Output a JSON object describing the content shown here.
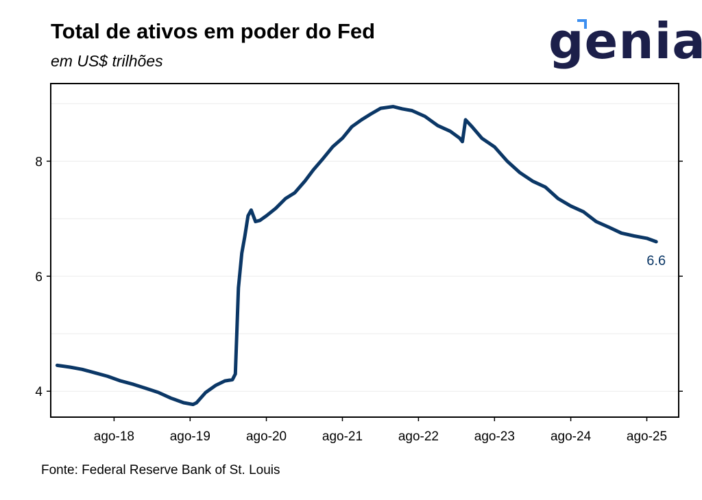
{
  "header": {
    "title": "Total de ativos em poder do Fed",
    "subtitle": "em US$ trilhões"
  },
  "logo": {
    "text": "genial"
  },
  "footer": {
    "source": "Fonte: Federal Reserve Bank of St. Louis"
  },
  "colors": {
    "series": "#0b3766",
    "logo": "#1c1f4a",
    "logo_accent": "#3b8ef0"
  },
  "chart_data": {
    "type": "line",
    "title": "Total de ativos em poder do Fed",
    "subtitle": "em US$ trilhões",
    "xlabel": "",
    "ylabel": "",
    "ylim": [
      3.55,
      9.35
    ],
    "xlim": [
      "2017-10-01",
      "2026-01-01"
    ],
    "yticks": [
      4,
      6,
      8
    ],
    "xticks": [
      "2018-08-01",
      "2019-08-01",
      "2020-08-01",
      "2021-08-01",
      "2022-08-01",
      "2023-08-01",
      "2024-08-01",
      "2025-08-01"
    ],
    "xtick_labels": [
      "ago-18",
      "ago-19",
      "ago-20",
      "ago-21",
      "ago-22",
      "ago-23",
      "ago-24",
      "ago-25"
    ],
    "grid": true,
    "series": [
      {
        "x": [
          "2017-11-01",
          "2018-01-01",
          "2018-03-01",
          "2018-05-01",
          "2018-07-01",
          "2018-09-01",
          "2018-11-01",
          "2019-01-01",
          "2019-03-01",
          "2019-05-01",
          "2019-07-01",
          "2019-08-15",
          "2019-09-01",
          "2019-10-15",
          "2019-12-01",
          "2020-01-15",
          "2020-02-20",
          "2020-03-05",
          "2020-03-20",
          "2020-04-05",
          "2020-04-20",
          "2020-05-05",
          "2020-05-20",
          "2020-06-10",
          "2020-07-01",
          "2020-08-01",
          "2020-09-15",
          "2020-11-01",
          "2020-12-15",
          "2021-02-01",
          "2021-03-15",
          "2021-05-01",
          "2021-06-15",
          "2021-08-01",
          "2021-09-15",
          "2021-11-01",
          "2021-12-15",
          "2022-02-01",
          "2022-04-01",
          "2022-05-15",
          "2022-07-01",
          "2022-09-01",
          "2022-11-01",
          "2023-01-01",
          "2023-02-15",
          "2023-02-28",
          "2023-03-15",
          "2023-04-15",
          "2023-06-01",
          "2023-08-01",
          "2023-10-01",
          "2023-12-01",
          "2024-02-01",
          "2024-04-01",
          "2024-06-01",
          "2024-08-01",
          "2024-10-01",
          "2024-12-01",
          "2025-02-01",
          "2025-04-01",
          "2025-06-01",
          "2025-08-01",
          "2025-09-15"
        ],
        "values": [
          4.45,
          4.42,
          4.38,
          4.32,
          4.26,
          4.18,
          4.12,
          4.05,
          3.98,
          3.88,
          3.8,
          3.77,
          3.8,
          3.98,
          4.1,
          4.18,
          4.2,
          4.3,
          5.8,
          6.4,
          6.7,
          7.05,
          7.15,
          6.95,
          6.97,
          7.05,
          7.18,
          7.35,
          7.45,
          7.65,
          7.85,
          8.05,
          8.25,
          8.4,
          8.6,
          8.72,
          8.82,
          8.92,
          8.95,
          8.91,
          8.88,
          8.78,
          8.62,
          8.52,
          8.4,
          8.34,
          8.72,
          8.6,
          8.4,
          8.25,
          8.0,
          7.8,
          7.65,
          7.55,
          7.35,
          7.22,
          7.12,
          6.95,
          6.85,
          6.75,
          6.7,
          6.66,
          6.6
        ]
      }
    ],
    "annotations": [
      {
        "text": "6.6",
        "x": "2025-09-15",
        "y": 6.6
      }
    ]
  }
}
